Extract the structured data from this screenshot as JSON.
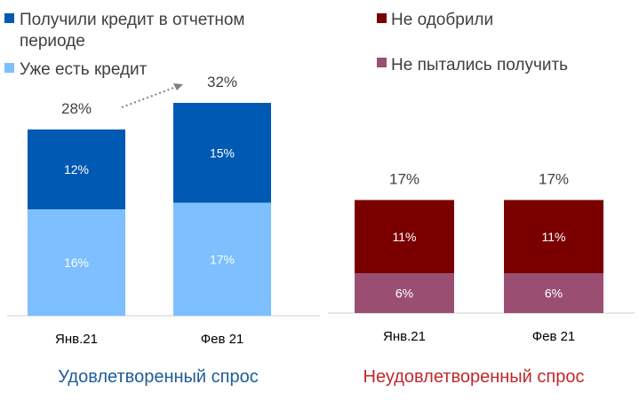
{
  "colors": {
    "received": "#0059b3",
    "existing": "#7dbfff",
    "rejected": "#7a0000",
    "not_tried": "#9a4f72",
    "title_left": "#1f5c99",
    "title_right": "#c0282d",
    "text": "#404040",
    "axis": "#d0d0d0"
  },
  "chart_data": [
    {
      "type": "bar",
      "stacked": true,
      "title": "Удовлетворенный спрос",
      "categories": [
        "Янв.21",
        "Фев 21"
      ],
      "series": [
        {
          "name": "Уже есть кредит",
          "values": [
            16,
            17
          ],
          "labels": [
            "16%",
            "17%"
          ]
        },
        {
          "name": "Получили кредит в отчетном периоде",
          "values": [
            12,
            15
          ],
          "labels": [
            "12%",
            "15%"
          ]
        }
      ],
      "totals": [
        "28%",
        "32%"
      ],
      "legend_position": "top",
      "ylim": [
        0,
        35
      ],
      "annotations": [
        "dotted arrow from 28% to 32%"
      ]
    },
    {
      "type": "bar",
      "stacked": true,
      "title": "Неудовлетворенный спрос",
      "categories": [
        "Янв.21",
        "Фев 21"
      ],
      "series": [
        {
          "name": "Не пытались получить",
          "values": [
            6,
            6
          ],
          "labels": [
            "6%",
            "6%"
          ]
        },
        {
          "name": "Не одобрили",
          "values": [
            11,
            11
          ],
          "labels": [
            "11%",
            "11%"
          ]
        }
      ],
      "totals": [
        "17%",
        "17%"
      ],
      "legend_position": "top",
      "ylim": [
        0,
        35
      ]
    }
  ]
}
